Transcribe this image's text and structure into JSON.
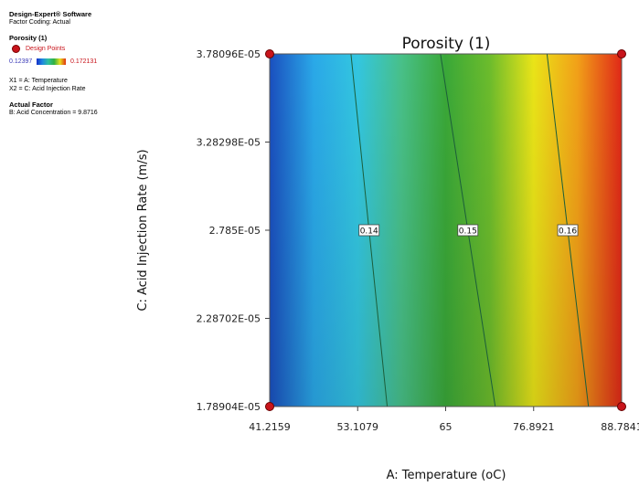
{
  "software": {
    "name": "Design-Expert® Software",
    "coding": "Factor Coding: Actual",
    "response": "Porosity (1)",
    "design_points_label": "Design Points",
    "scale_min": "0.12397",
    "scale_max": "0.172131",
    "x1": "X1 = A: Temperature",
    "x2": "X2 = C: Acid Injection Rate",
    "actual_factor_title": "Actual Factor",
    "actual_factor_value": "B: Acid Concentration = 9.8716"
  },
  "chart_data": {
    "type": "contour",
    "title": "Porosity (1)",
    "xlabel": "A: Temperature (oC)",
    "ylabel": "C: Acid Injection Rate (m/s)",
    "xlim": [
      41.2159,
      88.7841
    ],
    "ylim": [
      1.78904e-05,
      3.78096e-05
    ],
    "x_ticks": [
      "41.2159",
      "53.1079",
      "65",
      "76.8921",
      "88.7841"
    ],
    "y_ticks": [
      "1.78904E-05",
      "2.28702E-05",
      "2.785E-05",
      "3.28298E-05",
      "3.78096E-05"
    ],
    "contours": [
      {
        "level": "0.14",
        "label_y": 2.785e-05,
        "points": [
          [
            52.2,
            3.78096e-05
          ],
          [
            57.1,
            1.78904e-05
          ]
        ]
      },
      {
        "level": "0.15",
        "label_y": 2.785e-05,
        "points": [
          [
            64.3,
            3.78096e-05
          ],
          [
            71.7,
            1.78904e-05
          ]
        ]
      },
      {
        "level": "0.16",
        "label_y": 2.785e-05,
        "points": [
          [
            78.7,
            3.78096e-05
          ],
          [
            84.3,
            1.78904e-05
          ]
        ]
      }
    ],
    "design_points": [
      [
        41.2159,
        1.78904e-05
      ],
      [
        88.7841,
        1.78904e-05
      ],
      [
        41.2159,
        3.78096e-05
      ],
      [
        88.7841,
        3.78096e-05
      ]
    ],
    "color_scale": [
      "#1a4fbf",
      "#2aa8e8",
      "#33c6e0",
      "#48c088",
      "#3aa838",
      "#6cbc2c",
      "#eae418",
      "#f2a018",
      "#e02818"
    ],
    "grid": false
  }
}
